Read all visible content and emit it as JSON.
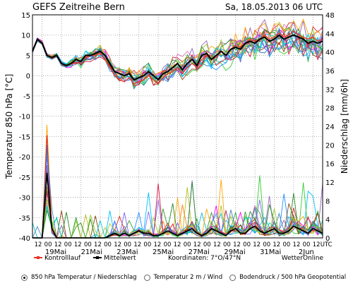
{
  "title_left": "GEFS Zeitreihe Bern",
  "title_right": "Sa, 18.05.2013 06 UTC",
  "chart_data": {
    "type": "line",
    "y_left_label": "Temperatur 850 hPa [°C]",
    "y_right_label": "Niederschlag [mm/6h]",
    "y_left_ticks": [
      15,
      10,
      5,
      0,
      -5,
      -10,
      -15,
      -20,
      -25,
      -30,
      -35,
      -40
    ],
    "y_right_ticks": [
      48,
      44,
      40,
      36,
      32,
      28,
      24,
      20,
      16,
      12,
      8,
      4,
      0
    ],
    "y_left_range": [
      -40,
      15
    ],
    "y_right_range": [
      0,
      48
    ],
    "x_hour_labels": [
      "12",
      "00",
      "12",
      "00",
      "12",
      "00",
      "12",
      "00",
      "12",
      "00",
      "12",
      "00",
      "12",
      "00",
      "12",
      "00",
      "12",
      "00",
      "12",
      "00",
      "12",
      "00",
      "12",
      "00",
      "12",
      "00",
      "12",
      "00",
      "12",
      "UTC"
    ],
    "x_date_labels": [
      "19Mai",
      "21Mai",
      "23Mai",
      "25Mai",
      "27Mai",
      "29Mai",
      "31Mai",
      "2Jun"
    ],
    "legend": [
      {
        "label": "Kontrolllauf",
        "color": "#e8352a"
      },
      {
        "label": "Mittelwert",
        "color": "#000000"
      }
    ],
    "coords_label": "Koordinaten: 7°O/47°N",
    "credit": "WetterOnline",
    "temperature": {
      "mean": [
        6,
        9,
        8,
        5,
        4.5,
        5,
        3,
        2.5,
        3,
        4,
        3.5,
        5,
        5,
        5.5,
        6,
        5,
        3,
        1,
        0.5,
        0,
        0.5,
        -1,
        -0.5,
        0,
        1,
        0,
        -1,
        0.5,
        1,
        2,
        3,
        1.5,
        3,
        4,
        2.5,
        5,
        5.5,
        4,
        5,
        6,
        5,
        6.5,
        7,
        6.5,
        8,
        8.5,
        8,
        9,
        9.5,
        8.5,
        9,
        10,
        9,
        9.5,
        10,
        9.5,
        9,
        8,
        8.5,
        8,
        8.5
      ],
      "control": [
        6,
        9,
        8,
        5,
        4.5,
        5,
        3,
        2.5,
        3,
        3,
        3.5,
        4.5,
        5,
        5,
        5.5,
        4,
        2,
        0,
        -1,
        -1.5,
        -0.5,
        -2,
        -1.5,
        -1,
        0,
        -1,
        -2,
        -0.5,
        0.5,
        1,
        2,
        0.5,
        2,
        3,
        2,
        4,
        5,
        4,
        4.5,
        6,
        5,
        6.5,
        7.5,
        7,
        8,
        9,
        8.5,
        9,
        10,
        9,
        9.5,
        10.5,
        9.5,
        10,
        11,
        10,
        9.5,
        9,
        9.5,
        8.5,
        9
      ]
    },
    "precip_mean": [
      0,
      0,
      0,
      14,
      2,
      0,
      0,
      0,
      0,
      0,
      0,
      0,
      0,
      0,
      0,
      0,
      0.5,
      1,
      0.5,
      1,
      0.5,
      1,
      1.5,
      1,
      1,
      0.5,
      0.5,
      1,
      1.5,
      1,
      0.5,
      1,
      1.5,
      2,
      1,
      0.5,
      1,
      2,
      1.5,
      1,
      0.5,
      1.5,
      2,
      1,
      1,
      2,
      2.5,
      1.5,
      1,
      1.5,
      2,
      1,
      1,
      1.5,
      2.5,
      2,
      1.5,
      1,
      2,
      1.5,
      1
    ]
  },
  "radio_options": [
    {
      "label": "850 hPa Temperatur / Niederschlag",
      "checked": true
    },
    {
      "label": "Temperatur 2 m / Wind",
      "checked": false
    },
    {
      "label": "Bodendruck / 500 hPa Geopotential",
      "checked": false
    }
  ]
}
